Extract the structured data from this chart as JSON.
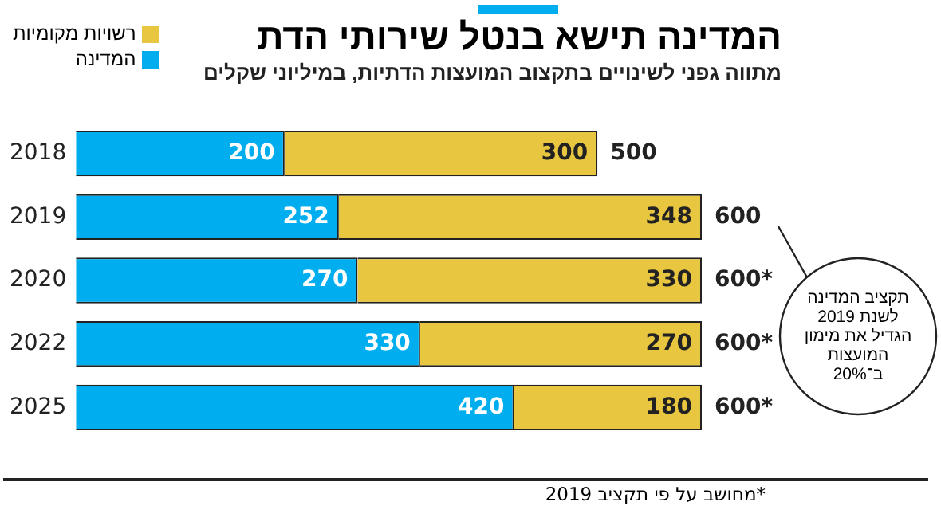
{
  "chart_data": {
    "type": "bar",
    "orientation": "horizontal",
    "stacked": true,
    "title": "המדינה תישא בנטל שירותי הדת",
    "subtitle": "מתווה גפני לשינויים בתקצוב המועצות הדתיות, במיליוני שקלים",
    "categories": [
      "2018",
      "2019",
      "2020",
      "2022",
      "2025"
    ],
    "series": [
      {
        "name": "המדינה",
        "color": "#00aeef",
        "values": [
          200,
          252,
          270,
          330,
          420
        ]
      },
      {
        "name": "רשויות מקומיות",
        "color": "#e8c640",
        "values": [
          300,
          348,
          330,
          270,
          180
        ]
      }
    ],
    "totals": [
      "500",
      "600",
      "600*",
      "600*",
      "600*"
    ],
    "data_labels": true,
    "grid": false,
    "legend": "top left",
    "annotations": [
      "תקציב המדינה לשנת 2019 הגדיל את מימון המועצות ב־20%",
      "*מחושב על פי תקציב 2019"
    ]
  }
}
